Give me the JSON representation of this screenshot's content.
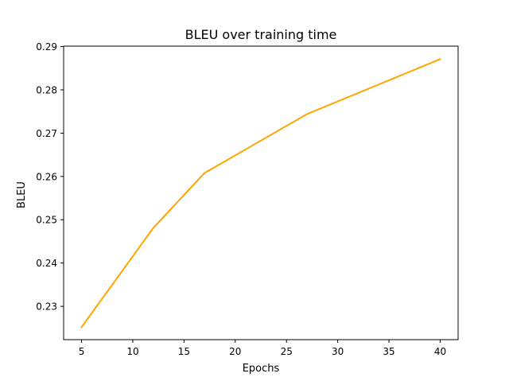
{
  "chart_data": {
    "type": "line",
    "title": "BLEU over training time",
    "xlabel": "Epochs",
    "ylabel": "BLEU",
    "xlim": [
      3.25,
      41.75
    ],
    "ylim": [
      0.2223,
      0.2901
    ],
    "xticks": [
      5,
      10,
      15,
      20,
      25,
      30,
      35,
      40
    ],
    "yticks": [
      0.23,
      0.24,
      0.25,
      0.26,
      0.27,
      0.28,
      0.29
    ],
    "grid": false,
    "legend": "none",
    "series": [
      {
        "color": "#ffa500",
        "x": [
          5,
          12,
          17,
          27,
          40
        ],
        "y": [
          0.2252,
          0.2481,
          0.2608,
          0.2744,
          0.2871
        ]
      }
    ]
  }
}
